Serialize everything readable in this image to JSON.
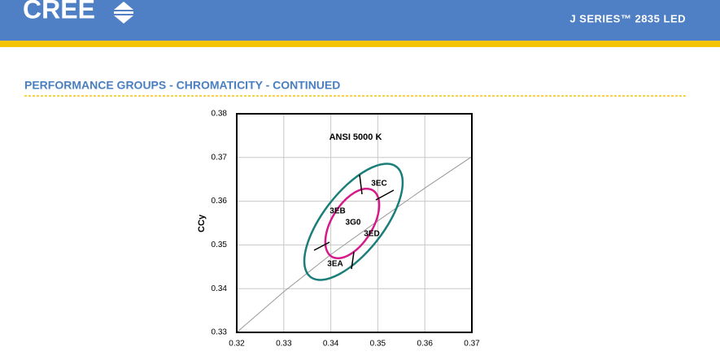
{
  "header": {
    "logo": "CREE",
    "product": "J SERIES™ 2835 LED"
  },
  "section_title": "PERFORMANCE GROUPS - CHROMATICITY - CONTINUED",
  "chart_data": {
    "type": "line",
    "title": "ANSI 5000 K",
    "y_label": "CCy",
    "x": [
      0.32,
      0.33,
      0.34,
      0.35,
      0.36,
      0.37
    ],
    "series": [
      {
        "color": "#999999",
        "values": [
          0.33,
          0.3393,
          0.3478,
          0.3555,
          0.363,
          0.3702
        ]
      }
    ],
    "xlim": [
      0.32,
      0.37
    ],
    "ylim": [
      0.33,
      0.38
    ],
    "xticks": [
      0.32,
      0.33,
      0.34,
      0.35,
      0.36,
      0.37
    ],
    "yticks": [
      0.33,
      0.34,
      0.35,
      0.36,
      0.37,
      0.38
    ],
    "grid": true,
    "annotations": [
      "3EC",
      "3EB",
      "3G0",
      "3ED",
      "3EA"
    ]
  }
}
